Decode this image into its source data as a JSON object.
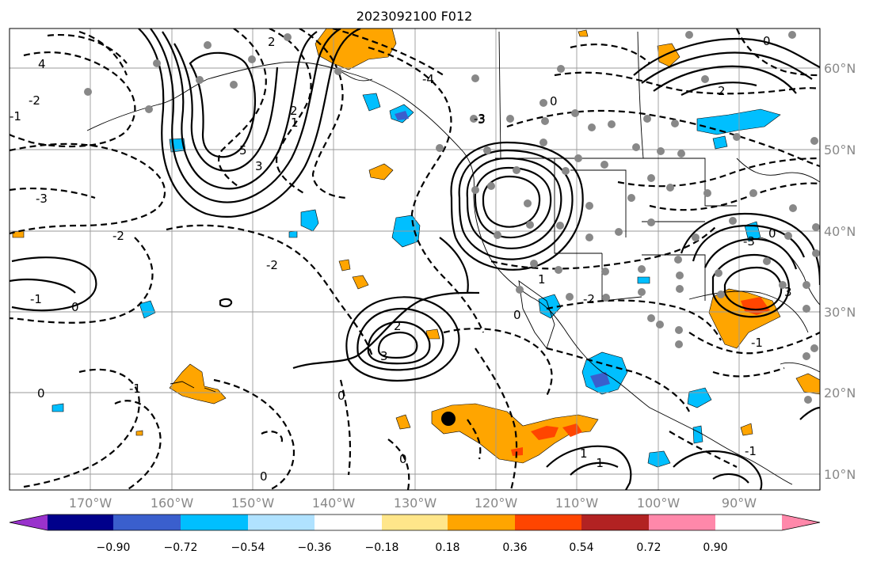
{
  "title": "2023092100 F012",
  "lon_labels": [
    "170°W",
    "160°W",
    "150°W",
    "140°W",
    "130°W",
    "120°W",
    "110°W",
    "100°W",
    "90°W"
  ],
  "lat_labels": [
    "60°N",
    "50°N",
    "40°N",
    "30°N",
    "20°N",
    "10°N"
  ],
  "colorbar": {
    "colors": [
      "#9932cc",
      "#00008b",
      "#3a5fcd",
      "#00bfff",
      "#b0e2ff",
      "#ffffff",
      "#ffe68a",
      "#ffa500",
      "#ff4500",
      "#b22222",
      "#ff88aa"
    ],
    "tick_labels": [
      "−0.90",
      "−0.72",
      "−0.54",
      "−0.36",
      "−0.18",
      "0.18",
      "0.36",
      "0.54",
      "0.72",
      "0.90"
    ]
  },
  "contour_labels": [
    "2",
    "-3",
    "4",
    "-4",
    "-2",
    "1",
    "5",
    "3",
    "-3",
    "0",
    "3",
    "-3",
    "2",
    "0",
    "-1",
    "0",
    "-1",
    "1",
    "0",
    "-2",
    "3",
    "-2",
    "2",
    "3",
    "0",
    "-1",
    "0",
    "-1",
    "1",
    "0",
    "-1",
    "2",
    "0",
    "-1",
    "-2",
    "0"
  ]
}
